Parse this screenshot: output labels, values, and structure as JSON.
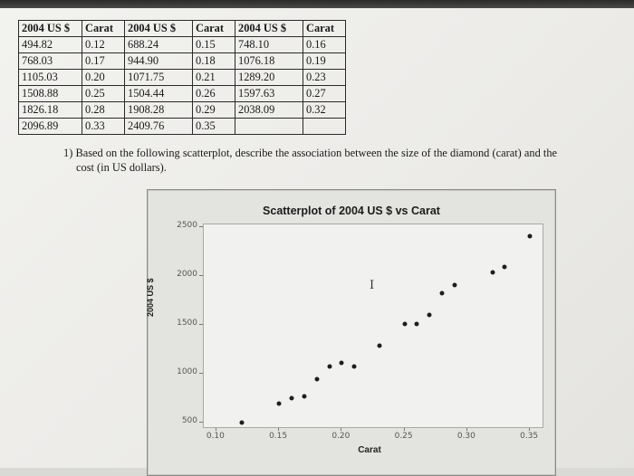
{
  "table": {
    "headers": [
      "2004 US $",
      "Carat",
      "2004 US $",
      "Carat",
      "2004 US $",
      "Carat"
    ],
    "rows": [
      [
        "494.82",
        "0.12",
        "688.24",
        "0.15",
        "748.10",
        "0.16"
      ],
      [
        "768.03",
        "0.17",
        "944.90",
        "0.18",
        "1076.18",
        "0.19"
      ],
      [
        "1105.03",
        "0.20",
        "1071.75",
        "0.21",
        "1289.20",
        "0.23"
      ],
      [
        "1508.88",
        "0.25",
        "1504.44",
        "0.26",
        "1597.63",
        "0.27"
      ],
      [
        "1826.18",
        "0.28",
        "1908.28",
        "0.29",
        "2038.09",
        "0.32"
      ],
      [
        "2096.89",
        "0.33",
        "2409.76",
        "0.35",
        "",
        ""
      ]
    ]
  },
  "question": {
    "number": "1)",
    "line1": "Based on the following scatterplot, describe the association between the size of the diamond (carat) and the",
    "line2": "cost (in US dollars)."
  },
  "chart_data": {
    "type": "scatter",
    "title": "Scatterplot of 2004 US $ vs Carat",
    "xlabel": "Carat",
    "ylabel": "2004 US $",
    "xlim": [
      0.09,
      0.36
    ],
    "ylim": [
      450,
      2530
    ],
    "xticks": [
      "0.10",
      "0.15",
      "0.20",
      "0.25",
      "0.30",
      "0.35"
    ],
    "yticks": [
      "500",
      "1000",
      "1500",
      "2000",
      "2500"
    ],
    "grid": false,
    "points": [
      {
        "x": 0.12,
        "y": 494.82
      },
      {
        "x": 0.15,
        "y": 688.24
      },
      {
        "x": 0.16,
        "y": 748.1
      },
      {
        "x": 0.17,
        "y": 768.03
      },
      {
        "x": 0.18,
        "y": 944.9
      },
      {
        "x": 0.19,
        "y": 1076.18
      },
      {
        "x": 0.2,
        "y": 1105.03
      },
      {
        "x": 0.21,
        "y": 1071.75
      },
      {
        "x": 0.23,
        "y": 1289.2
      },
      {
        "x": 0.25,
        "y": 1508.88
      },
      {
        "x": 0.26,
        "y": 1504.44
      },
      {
        "x": 0.27,
        "y": 1597.63
      },
      {
        "x": 0.28,
        "y": 1826.18
      },
      {
        "x": 0.29,
        "y": 1908.28
      },
      {
        "x": 0.32,
        "y": 2038.09
      },
      {
        "x": 0.33,
        "y": 2096.89
      },
      {
        "x": 0.35,
        "y": 2409.76
      }
    ]
  },
  "cursor": {
    "icon": "text-cursor-icon",
    "glyph": "I"
  }
}
